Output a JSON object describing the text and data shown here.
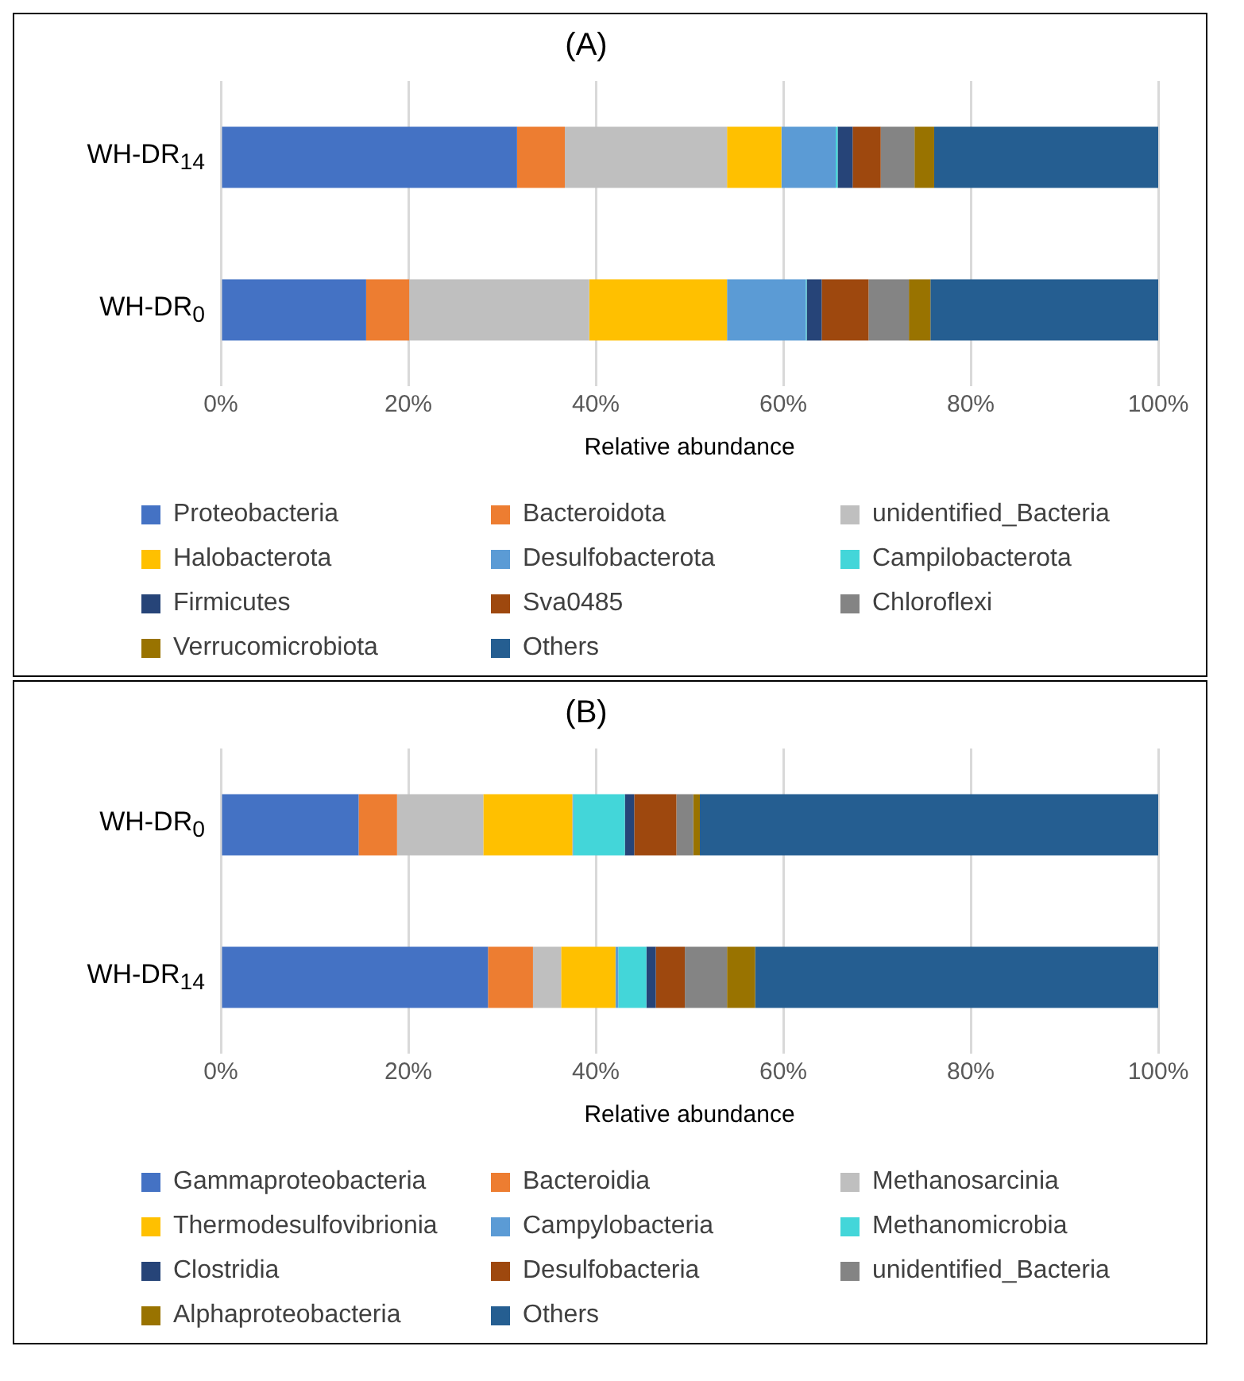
{
  "chart_data": [
    {
      "type": "bar",
      "title": "(A)",
      "orientation": "horizontal",
      "stacked": true,
      "xlabel": "Relative abundance",
      "categories": [
        "WH-DR$_{14}$",
        "WH-DR$_{0}$"
      ],
      "xlim": [
        0,
        100
      ],
      "xticks": [
        {
          "value": 0,
          "label": "0%"
        },
        {
          "value": 20,
          "label": "20%"
        },
        {
          "value": 40,
          "label": "40%"
        },
        {
          "value": 60,
          "label": "60%"
        },
        {
          "value": 80,
          "label": "80%"
        },
        {
          "value": 100,
          "label": "100%"
        }
      ],
      "grid": "x",
      "legend": "bottom",
      "series": [
        {
          "name": "Proteobacteria",
          "color": "#4472c4",
          "values": [
            31.6,
            15.5
          ]
        },
        {
          "name": "Bacteroidota",
          "color": "#ed7d31",
          "values": [
            5.1,
            4.6
          ]
        },
        {
          "name": "unidentified_Bacteria",
          "color": "#bfbfbf",
          "values": [
            17.3,
            19.2
          ]
        },
        {
          "name": "Halobacterota",
          "color": "#ffc000",
          "values": [
            5.8,
            14.7
          ]
        },
        {
          "name": "Desulfobacterota",
          "color": "#5b9bd5",
          "values": [
            5.8,
            8.4
          ]
        },
        {
          "name": "Campilobacterota",
          "color": "#43d6d9",
          "values": [
            0.2,
            0.1
          ]
        },
        {
          "name": "Firmicutes",
          "color": "#264478",
          "values": [
            1.6,
            1.6
          ]
        },
        {
          "name": "Sva0485",
          "color": "#9e480e",
          "values": [
            3.0,
            5.0
          ]
        },
        {
          "name": "Chloroflexi",
          "color": "#848484",
          "values": [
            3.6,
            4.3
          ]
        },
        {
          "name": "Verrucomicrobiota",
          "color": "#997300",
          "values": [
            2.1,
            2.3
          ]
        },
        {
          "name": "Others",
          "color": "#255e91",
          "values": [
            23.9,
            24.3
          ]
        }
      ]
    },
    {
      "type": "bar",
      "title": "(B)",
      "orientation": "horizontal",
      "stacked": true,
      "xlabel": "Relative abundance",
      "categories": [
        "WH-DR$_{0}$",
        "WH-DR$_{14}$"
      ],
      "xlim": [
        0,
        100
      ],
      "xticks": [
        {
          "value": 0,
          "label": "0%"
        },
        {
          "value": 20,
          "label": "20%"
        },
        {
          "value": 40,
          "label": "40%"
        },
        {
          "value": 60,
          "label": "60%"
        },
        {
          "value": 80,
          "label": "80%"
        },
        {
          "value": 100,
          "label": "100%"
        }
      ],
      "grid": "x",
      "legend": "bottom",
      "series": [
        {
          "name": "Gammaproteobacteria",
          "color": "#4472c4",
          "values": [
            14.7,
            28.5
          ]
        },
        {
          "name": "Bacteroidia",
          "color": "#ed7d31",
          "values": [
            4.1,
            4.8
          ]
        },
        {
          "name": "Methanosarcinia",
          "color": "#bfbfbf",
          "values": [
            9.2,
            3.0
          ]
        },
        {
          "name": "Thermodesulfovibrionia",
          "color": "#ffc000",
          "values": [
            9.5,
            5.8
          ]
        },
        {
          "name": "Campylobacteria",
          "color": "#5b9bd5",
          "values": [
            0.1,
            0.3
          ]
        },
        {
          "name": "Methanomicrobia",
          "color": "#43d6d9",
          "values": [
            5.5,
            3.0
          ]
        },
        {
          "name": "Clostridia",
          "color": "#264478",
          "values": [
            1.0,
            1.0
          ]
        },
        {
          "name": "Desulfobacteria",
          "color": "#9e480e",
          "values": [
            4.5,
            3.1
          ]
        },
        {
          "name": "unidentified_Bacteria",
          "color": "#848484",
          "values": [
            1.8,
            4.5
          ]
        },
        {
          "name": "Alphaproteobacteria",
          "color": "#997300",
          "values": [
            0.7,
            3.0
          ]
        },
        {
          "name": "Others",
          "color": "#255e91",
          "values": [
            48.9,
            43.0
          ]
        }
      ]
    }
  ]
}
